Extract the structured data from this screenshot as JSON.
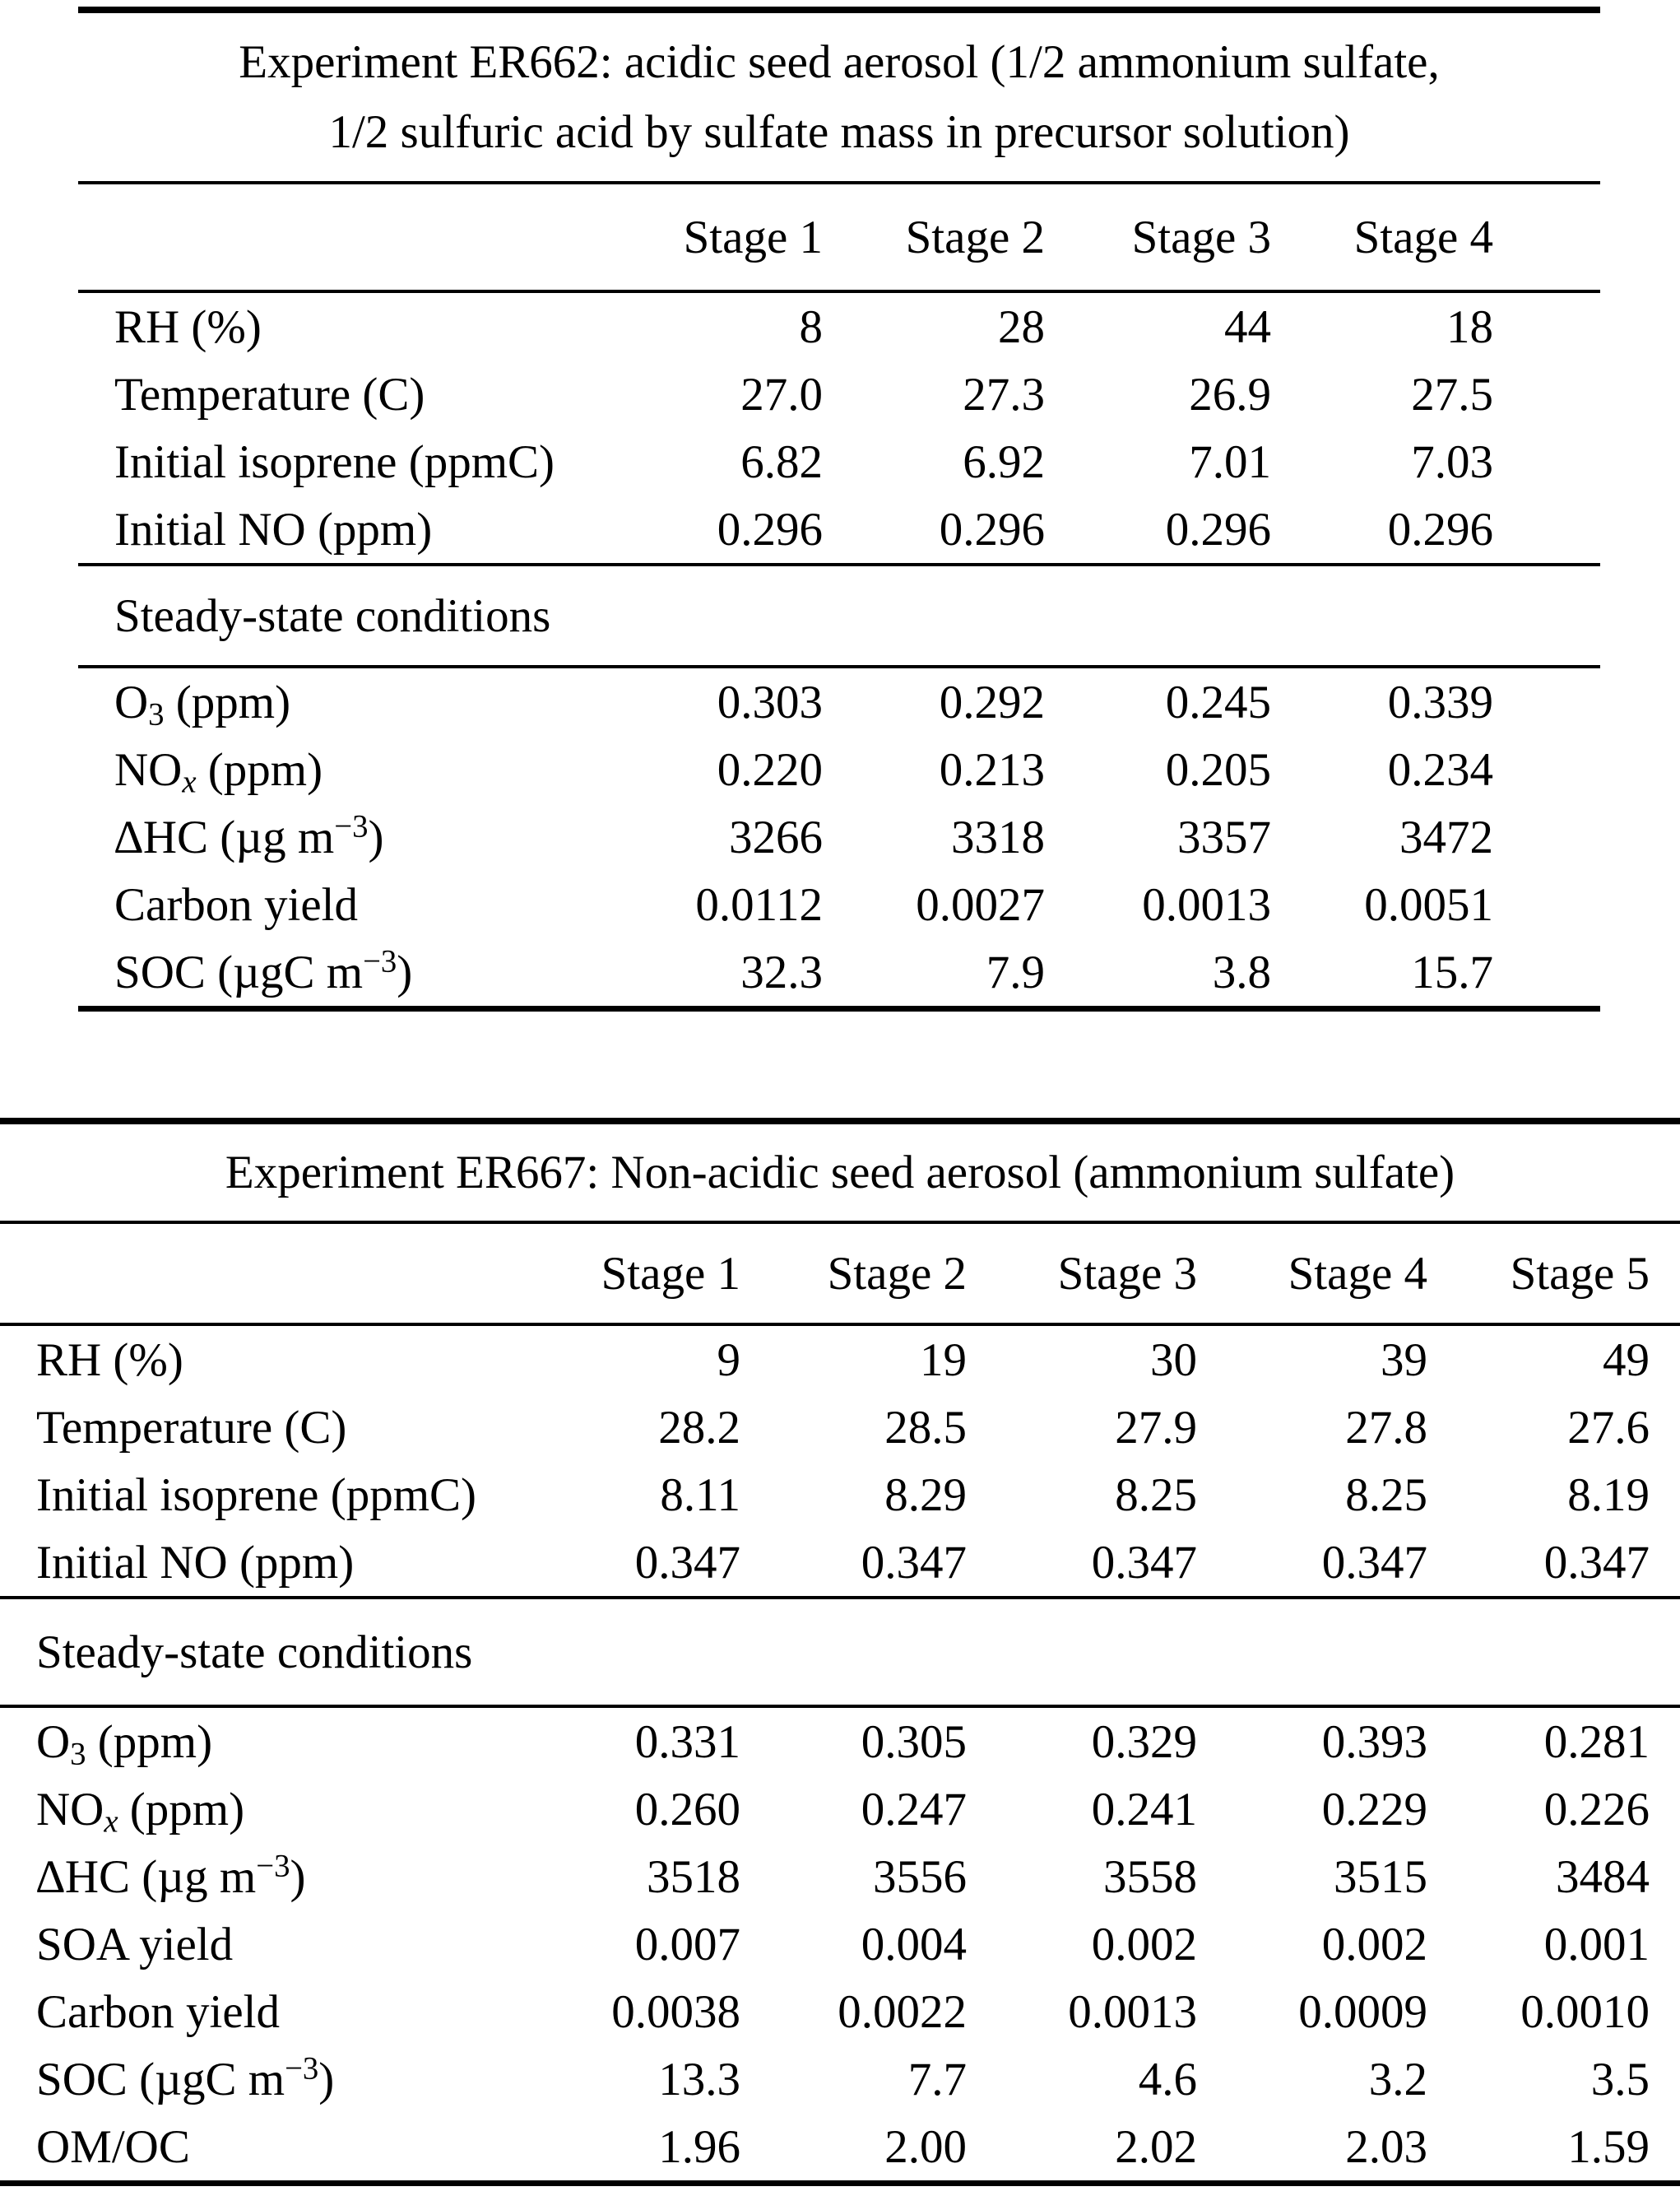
{
  "page": {
    "background": "#ffffff",
    "text_color": "#000000"
  },
  "tables": [
    {
      "id": "ER662",
      "title_lines": [
        "Experiment ER662: acidic seed aerosol (1/2 ammonium sulfate,",
        "1/2 sulfuric acid by sulfate mass in precursor solution)"
      ],
      "stage_headers": [
        "Stage 1",
        "Stage 2",
        "Stage 3",
        "Stage 4"
      ],
      "initial_rows": [
        {
          "label": "RH (%)",
          "values": [
            "8",
            "28",
            "44",
            "18"
          ]
        },
        {
          "label": "Temperature (C)",
          "values": [
            "27.0",
            "27.3",
            "26.9",
            "27.5"
          ]
        },
        {
          "label": "Initial isoprene (ppmC)",
          "values": [
            "6.82",
            "6.92",
            "7.01",
            "7.03"
          ]
        },
        {
          "label": "Initial NO (ppm)",
          "values": [
            "0.296",
            "0.296",
            "0.296",
            "0.296"
          ]
        }
      ],
      "section_label": "Steady-state conditions",
      "steady_rows": [
        {
          "label": "O~3~ (ppm)",
          "values": [
            "0.303",
            "0.292",
            "0.245",
            "0.339"
          ]
        },
        {
          "label": "NO~x~ (ppm)",
          "values": [
            "0.220",
            "0.213",
            "0.205",
            "0.234"
          ]
        },
        {
          "label": "∆HC (µg m^−3^)",
          "values": [
            "3266",
            "3318",
            "3357",
            "3472"
          ]
        },
        {
          "label": "Carbon yield",
          "values": [
            "0.0112",
            "0.0027",
            "0.0013",
            "0.0051"
          ]
        },
        {
          "label": "SOC (µgC m^−3^)",
          "values": [
            "32.3",
            "7.9",
            "3.8",
            "15.7"
          ]
        }
      ]
    },
    {
      "id": "ER667",
      "title_lines": [
        "Experiment ER667: Non-acidic seed aerosol (ammonium sulfate)"
      ],
      "stage_headers": [
        "Stage 1",
        "Stage 2",
        "Stage 3",
        "Stage 4",
        "Stage 5"
      ],
      "initial_rows": [
        {
          "label": "RH (%)",
          "values": [
            "9",
            "19",
            "30",
            "39",
            "49"
          ]
        },
        {
          "label": "Temperature (C)",
          "values": [
            "28.2",
            "28.5",
            "27.9",
            "27.8",
            "27.6"
          ]
        },
        {
          "label": "Initial isoprene (ppmC)",
          "values": [
            "8.11",
            "8.29",
            "8.25",
            "8.25",
            "8.19"
          ]
        },
        {
          "label": "Initial NO (ppm)",
          "values": [
            "0.347",
            "0.347",
            "0.347",
            "0.347",
            "0.347"
          ]
        }
      ],
      "section_label": "Steady-state conditions",
      "steady_rows": [
        {
          "label": "O~3~ (ppm)",
          "values": [
            "0.331",
            "0.305",
            "0.329",
            "0.393",
            "0.281"
          ]
        },
        {
          "label": "NO~x~ (ppm)",
          "values": [
            "0.260",
            "0.247",
            "0.241",
            "0.229",
            "0.226"
          ]
        },
        {
          "label": "∆HC (µg m^−3^)",
          "values": [
            "3518",
            "3556",
            "3558",
            "3515",
            "3484"
          ]
        },
        {
          "label": "SOA yield",
          "values": [
            "0.007",
            "0.004",
            "0.002",
            "0.002",
            "0.001"
          ]
        },
        {
          "label": "Carbon yield",
          "values": [
            "0.0038",
            "0.0022",
            "0.0013",
            "0.0009",
            "0.0010"
          ]
        },
        {
          "label": "SOC (µgC m^−3^)",
          "values": [
            "13.3",
            "7.7",
            "4.6",
            "3.2",
            "3.5"
          ]
        },
        {
          "label": "OM/OC",
          "values": [
            "1.96",
            "2.00",
            "2.02",
            "2.03",
            "1.59"
          ]
        }
      ]
    }
  ]
}
